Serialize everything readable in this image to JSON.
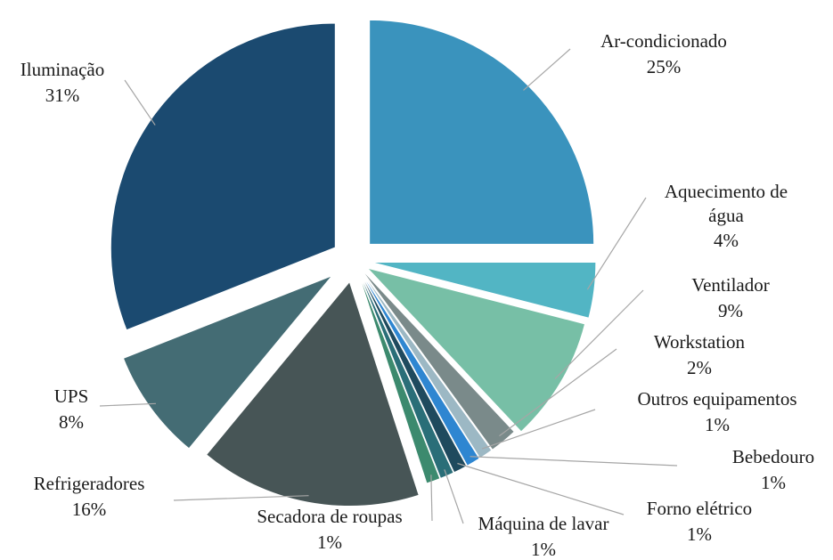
{
  "chart_data": {
    "type": "pie",
    "categories": [
      "Ar-condicionado",
      "Aquecimento de água",
      "Ventilador",
      "Workstation",
      "Outros equipamentos",
      "Bebedouro",
      "Forno elétrico",
      "Máquina de lavar",
      "Secadora de roupas",
      "Refrigeradores",
      "UPS",
      "Iluminação"
    ],
    "values": [
      25,
      4,
      9,
      2,
      1,
      1,
      1,
      1,
      1,
      16,
      8,
      31
    ],
    "value_labels": [
      "25%",
      "4%",
      "9%",
      "2%",
      "1%",
      "1%",
      "1%",
      "1%",
      "1%",
      "16%",
      "8%",
      "31%"
    ],
    "colors": [
      "#3a93bd",
      "#52b5c4",
      "#77bfa6",
      "#7a8a8a",
      "#9cb8c4",
      "#2e86d1",
      "#1f4a5e",
      "#2a6e78",
      "#3c8a6e",
      "#475556",
      "#446c74",
      "#1b4a70"
    ]
  }
}
